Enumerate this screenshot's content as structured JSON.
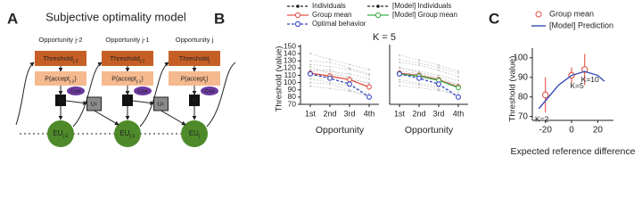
{
  "panel_labels": [
    "A",
    "B",
    "C"
  ],
  "diagram": {
    "title": "Subjective optimality model",
    "columns": [
      {
        "opportunity": "Opportunity j-2",
        "threshold": {
          "text": "Threshold",
          "sub": "j-2"
        },
        "p_accept": {
          "text": "P(accept",
          "sub": "j-2",
          "close": ")"
        },
        "cost": "Cost",
        "u": "U",
        "eu": {
          "text": "EU",
          "sub": "j-2"
        }
      },
      {
        "opportunity": "Opportunity j-1",
        "threshold": {
          "text": "Threshold",
          "sub": "j-1"
        },
        "p_accept": {
          "text": "P(accept",
          "sub": "j-1",
          "close": ")"
        },
        "cost": "Cost",
        "u": "U",
        "eu": {
          "text": "EU",
          "sub": "j-1"
        }
      },
      {
        "opportunity": "Opportunity j",
        "threshold": {
          "text": "Threshold",
          "sub": "j"
        },
        "p_accept": {
          "text": "P(accept",
          "sub": "j",
          "close": ")"
        },
        "cost": "Cost",
        "u": "U",
        "eu": {
          "text": "EU",
          "sub": "j"
        }
      }
    ],
    "carry": [
      {
        "text": "U",
        "sup": "c"
      },
      {
        "text": "U",
        "sup": "c"
      }
    ]
  },
  "chart_data": [
    {
      "type": "line",
      "title": "K = 5",
      "ylabel": "Threshold (value)",
      "xlabel": "Opportunity",
      "categories": [
        "1st",
        "2nd",
        "3rd",
        "4th"
      ],
      "ylim": [
        70,
        150
      ],
      "yticks": [
        70,
        80,
        90,
        100,
        110,
        120,
        130,
        140,
        150
      ],
      "individuals": {
        "name": "Individuals",
        "color": "#b8b8b8",
        "lines": [
          [
            125,
            122,
            118,
            110
          ],
          [
            118,
            115,
            112,
            105
          ],
          [
            105,
            100,
            95,
            85
          ],
          [
            130,
            128,
            120,
            112
          ],
          [
            110,
            108,
            104,
            100
          ],
          [
            100,
            98,
            90,
            80
          ],
          [
            122,
            112,
            108,
            98
          ],
          [
            140,
            132,
            125,
            118
          ],
          [
            95,
            92,
            88,
            82
          ],
          [
            115,
            118,
            106,
            92
          ]
        ]
      },
      "series": [
        {
          "name": "Group mean",
          "color": "#e0554a",
          "marker": "circle",
          "values": [
            113,
            109,
            104,
            94
          ],
          "errors": [
            4,
            4,
            4,
            4
          ]
        },
        {
          "name": "Optimal behavior",
          "color": "#3546c2",
          "marker": "circle",
          "dashed": true,
          "values": [
            112,
            106,
            98,
            80
          ]
        }
      ]
    },
    {
      "type": "line",
      "xlabel": "Opportunity",
      "categories": [
        "1st",
        "2nd",
        "3rd",
        "4th"
      ],
      "ylim": [
        70,
        150
      ],
      "individuals": {
        "name": "[Model] Individuals",
        "color": "#b8b8b8",
        "lines": [
          [
            128,
            124,
            117,
            108
          ],
          [
            120,
            116,
            110,
            103
          ],
          [
            104,
            99,
            94,
            86
          ],
          [
            132,
            127,
            121,
            113
          ],
          [
            111,
            108,
            103,
            98
          ],
          [
            101,
            97,
            91,
            82
          ],
          [
            121,
            114,
            107,
            97
          ],
          [
            138,
            131,
            124,
            116
          ],
          [
            96,
            93,
            89,
            83
          ],
          [
            116,
            112,
            105,
            93
          ]
        ]
      },
      "series": [
        {
          "name": "Group mean",
          "color": "#e0554a",
          "marker": "circle",
          "values": [
            113,
            110,
            104,
            94
          ],
          "errors": [
            4,
            4,
            4,
            4
          ]
        },
        {
          "name": "[Model] Group mean",
          "color": "#3fae49",
          "marker": "circle",
          "values": [
            112,
            109,
            103,
            93
          ],
          "errors": [
            4,
            4,
            4,
            4
          ]
        },
        {
          "name": "Optimal behavior",
          "color": "#3546c2",
          "marker": "circle",
          "dashed": true,
          "values": [
            112,
            106,
            98,
            80
          ]
        }
      ]
    },
    {
      "type": "scatter",
      "ylabel": "Threshold (value)",
      "xlabel": "Expected reference difference",
      "xlim": [
        -30,
        32
      ],
      "xticks": [
        -20,
        0,
        20
      ],
      "ylim": [
        68,
        104
      ],
      "yticks": [
        70,
        80,
        90,
        100
      ],
      "series": [
        {
          "name": "Group mean",
          "color": "#e0554a",
          "marker": "circle",
          "line": false,
          "x": [
            -20,
            0,
            10
          ],
          "values": [
            81,
            91,
            94
          ],
          "errors": [
            9,
            4,
            8
          ],
          "point_labels": [
            "K=2",
            "K=5",
            "K=10"
          ]
        },
        {
          "name": "[Model] Prediction",
          "color": "#2b3fb5",
          "x": [
            -25,
            -20,
            -10,
            0,
            10,
            20,
            25
          ],
          "values": [
            74,
            78,
            86,
            91,
            93,
            91,
            88
          ]
        }
      ]
    }
  ]
}
